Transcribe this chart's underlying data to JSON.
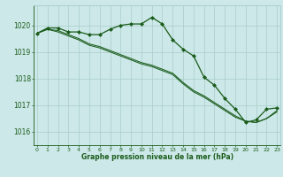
{
  "title": "Graphe pression niveau de la mer (hPa)",
  "bg_color": "#cce8e8",
  "grid_color": "#aacccc",
  "line_color": "#1a5c1a",
  "marker_color": "#1a5c1a",
  "x_ticks": [
    0,
    1,
    2,
    3,
    4,
    5,
    6,
    7,
    8,
    9,
    10,
    11,
    12,
    13,
    14,
    15,
    16,
    17,
    18,
    19,
    20,
    21,
    22,
    23
  ],
  "y_ticks": [
    1016,
    1017,
    1018,
    1019,
    1020
  ],
  "ylim": [
    1015.5,
    1020.75
  ],
  "xlim": [
    -0.3,
    23.3
  ],
  "line1": [
    1019.7,
    1019.9,
    1019.9,
    1019.75,
    1019.75,
    1019.65,
    1019.65,
    1019.85,
    1020.0,
    1020.05,
    1020.05,
    1020.3,
    1020.05,
    1019.45,
    1019.1,
    1018.85,
    1018.05,
    1017.75,
    1017.25,
    1016.85,
    1016.35,
    1016.45,
    1016.85,
    1016.9
  ],
  "line2": [
    1019.7,
    1019.85,
    1019.8,
    1019.65,
    1019.5,
    1019.3,
    1019.2,
    1019.05,
    1018.9,
    1018.75,
    1018.6,
    1018.5,
    1018.35,
    1018.2,
    1017.85,
    1017.55,
    1017.35,
    1017.1,
    1016.85,
    1016.6,
    1016.4,
    1016.35,
    1016.5,
    1016.8
  ],
  "line3": [
    1019.7,
    1019.85,
    1019.75,
    1019.6,
    1019.45,
    1019.25,
    1019.15,
    1019.0,
    1018.85,
    1018.7,
    1018.55,
    1018.45,
    1018.3,
    1018.15,
    1017.8,
    1017.5,
    1017.3,
    1017.05,
    1016.8,
    1016.55,
    1016.4,
    1016.35,
    1016.5,
    1016.75
  ]
}
